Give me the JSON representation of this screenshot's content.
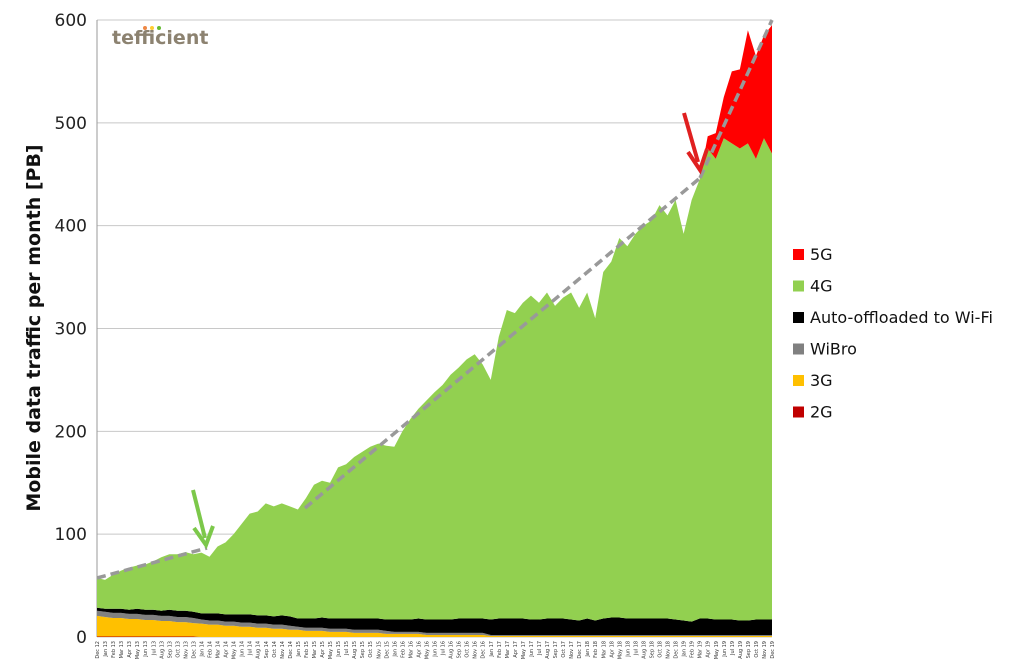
{
  "chart_data": {
    "type": "stacked-area",
    "y_label": "Mobile data traffic per month [PB]",
    "logo": "tefficient",
    "ylim": [
      0,
      600
    ],
    "yticks": [
      0,
      100,
      200,
      300,
      400,
      500,
      600
    ],
    "grid": true,
    "legend_position": "right",
    "categories": [
      "Dec 12",
      "Jan 13",
      "Feb 13",
      "Mar 13",
      "Apr 13",
      "May 13",
      "Jun 13",
      "Jul 13",
      "Aug 13",
      "Sep 13",
      "Oct 13",
      "Nov 13",
      "Dec 13",
      "Jan 14",
      "Feb 14",
      "Mar 14",
      "Apr 14",
      "May 14",
      "Jun 14",
      "Jul 14",
      "Aug 14",
      "Sep 14",
      "Oct 14",
      "Nov 14",
      "Dec 14",
      "Jan 15",
      "Feb 15",
      "Mar 15",
      "Apr 15",
      "May 15",
      "Jun 15",
      "Jul 15",
      "Aug 15",
      "Sep 15",
      "Oct 15",
      "Nov 15",
      "Dec 15",
      "Jan 16",
      "Feb 16",
      "Mar 16",
      "Apr 16",
      "May 16",
      "Jun 16",
      "Jul 16",
      "Aug 16",
      "Sep 16",
      "Oct 16",
      "Nov 16",
      "Dec 16",
      "Jan 17",
      "Feb 17",
      "Mar 17",
      "Apr 17",
      "May 17",
      "Jun 17",
      "Jul 17",
      "Aug 17",
      "Sep 17",
      "Oct 17",
      "Nov 17",
      "Dec 17",
      "Jan 18",
      "Feb 18",
      "Mar 18",
      "Apr 18",
      "May 18",
      "Jun 18",
      "Jul 18",
      "Aug 18",
      "Sep 18",
      "Oct 18",
      "Nov 18",
      "Dec 18",
      "Jan 19",
      "Feb 19",
      "Mar 19",
      "Apr 19",
      "May 19",
      "Jun 19",
      "Jul 19",
      "Aug 19",
      "Sep 19",
      "Oct 19",
      "Nov 19",
      "Dec 19"
    ],
    "series": [
      {
        "name": "2G",
        "color": "#c00000",
        "values": [
          0.5,
          0.5,
          0.5,
          0.5,
          0.5,
          0.5,
          0.5,
          0.5,
          0.5,
          0.5,
          0.5,
          0.5,
          0.5,
          0,
          0,
          0,
          0,
          0,
          0,
          0,
          0,
          0,
          0,
          0,
          0,
          0,
          0,
          0,
          0,
          0,
          0,
          0,
          0,
          0,
          0,
          0,
          0,
          0,
          0,
          0,
          0,
          0,
          0,
          0,
          0,
          0,
          0,
          0,
          0,
          0,
          0,
          0,
          0,
          0,
          0,
          0,
          0,
          0,
          0,
          0,
          0,
          0,
          0,
          0,
          0,
          0,
          0,
          0,
          0,
          0,
          0,
          0,
          0,
          0,
          0,
          0,
          0,
          0,
          0,
          0,
          0,
          0,
          0,
          0,
          0
        ]
      },
      {
        "name": "3G",
        "color": "#ffc000",
        "values": [
          20,
          19,
          18,
          18,
          17,
          17,
          16,
          16,
          15,
          15,
          14,
          14,
          13,
          13,
          12,
          12,
          11,
          11,
          10,
          10,
          9,
          9,
          8,
          8,
          7,
          7,
          6,
          6,
          6,
          5,
          5,
          5,
          4,
          4,
          4,
          4,
          3,
          3,
          3,
          3,
          3,
          2,
          2,
          2,
          2,
          2,
          2,
          2,
          2,
          1,
          1,
          1,
          1,
          1,
          1,
          1,
          1,
          1,
          1,
          1,
          1,
          1,
          1,
          1,
          1,
          1,
          1,
          1,
          1,
          1,
          1,
          1,
          1,
          1,
          1,
          1,
          1,
          1,
          1,
          1,
          1,
          1,
          1,
          1,
          1
        ]
      },
      {
        "name": "WiBro",
        "color": "#808080",
        "values": [
          5,
          5,
          5,
          5,
          5,
          5,
          5,
          5,
          5,
          5,
          5,
          5,
          5,
          4,
          4,
          4,
          4,
          4,
          4,
          4,
          4,
          4,
          4,
          4,
          4,
          3,
          3,
          3,
          3,
          3,
          3,
          3,
          3,
          3,
          3,
          3,
          3,
          2,
          2,
          2,
          2,
          2,
          2,
          2,
          2,
          2,
          2,
          2,
          2,
          1,
          1,
          1,
          1,
          1,
          1,
          1,
          1,
          1,
          1,
          1,
          1,
          1,
          1,
          1,
          1,
          1,
          1,
          1,
          1,
          1,
          1,
          1,
          1,
          1,
          1,
          1,
          1,
          1,
          1,
          1,
          1,
          1,
          1,
          1,
          1
        ]
      },
      {
        "name": "Auto-offloaded to Wi-Fi",
        "color": "#000000",
        "values": [
          3,
          3,
          4,
          4,
          4,
          5,
          5,
          5,
          5,
          6,
          6,
          6,
          6,
          6,
          7,
          7,
          7,
          7,
          8,
          8,
          8,
          8,
          8,
          9,
          9,
          8,
          9,
          9,
          10,
          10,
          10,
          10,
          11,
          11,
          11,
          11,
          11,
          12,
          12,
          12,
          13,
          13,
          13,
          13,
          13,
          14,
          14,
          14,
          14,
          15,
          16,
          16,
          16,
          16,
          15,
          15,
          16,
          16,
          16,
          15,
          14,
          16,
          14,
          16,
          17,
          17,
          16,
          16,
          16,
          16,
          16,
          16,
          15,
          14,
          13,
          16,
          16,
          15,
          15,
          15,
          14,
          14,
          15,
          15,
          15
        ]
      },
      {
        "name": "4G",
        "color": "#92d050",
        "values": [
          29,
          28,
          33,
          37,
          41,
          42,
          44,
          47,
          52,
          54,
          55,
          57,
          56,
          59,
          55,
          65,
          70,
          78,
          88,
          98,
          101,
          109,
          107,
          109,
          107,
          106,
          117,
          130,
          133,
          132,
          147,
          150,
          157,
          162,
          167,
          170,
          169,
          168,
          183,
          195,
          204,
          213,
          221,
          228,
          238,
          244,
          252,
          257,
          247,
          233,
          274,
          300,
          297,
          307,
          315,
          308,
          317,
          304,
          312,
          318,
          304,
          317,
          294,
          337,
          346,
          369,
          362,
          374,
          382,
          387,
          402,
          392,
          408,
          376,
          410,
          427,
          457,
          448,
          468,
          463,
          459,
          464,
          448,
          468,
          453
        ]
      },
      {
        "name": "5G",
        "color": "#ff0000",
        "values": [
          0,
          0,
          0,
          0,
          0,
          0,
          0,
          0,
          0,
          0,
          0,
          0,
          0,
          0,
          0,
          0,
          0,
          0,
          0,
          0,
          0,
          0,
          0,
          0,
          0,
          0,
          0,
          0,
          0,
          0,
          0,
          0,
          0,
          0,
          0,
          0,
          0,
          0,
          0,
          0,
          0,
          0,
          0,
          0,
          0,
          0,
          0,
          0,
          0,
          0,
          0,
          0,
          0,
          0,
          0,
          0,
          0,
          0,
          0,
          0,
          0,
          0,
          0,
          0,
          0,
          0,
          0,
          0,
          0,
          0,
          0,
          0,
          0,
          0,
          0,
          0,
          12,
          25,
          40,
          70,
          77,
          110,
          100,
          100,
          125
        ]
      }
    ]
  }
}
